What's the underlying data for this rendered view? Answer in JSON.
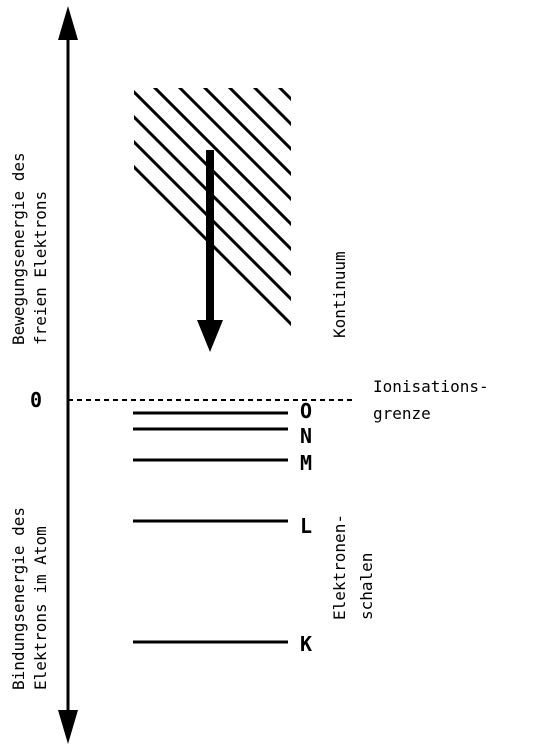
{
  "axis": {
    "upper_label_line1": "Bewegungsenergie des",
    "upper_label_line2": "freien Elektrons",
    "lower_label_line1": "Bindungsenergie des",
    "lower_label_line2": "Elektrons im Atom",
    "zero_label": "0"
  },
  "continuum": {
    "label": "Kontinuum"
  },
  "ionisation": {
    "label_line1": "Ionisations-",
    "label_line2": "grenze"
  },
  "shells": {
    "group_label_line1": "Elektronen-",
    "group_label_line2": "schalen",
    "items": [
      {
        "name": "O"
      },
      {
        "name": "N"
      },
      {
        "name": "M"
      },
      {
        "name": "L"
      },
      {
        "name": "K"
      }
    ]
  }
}
